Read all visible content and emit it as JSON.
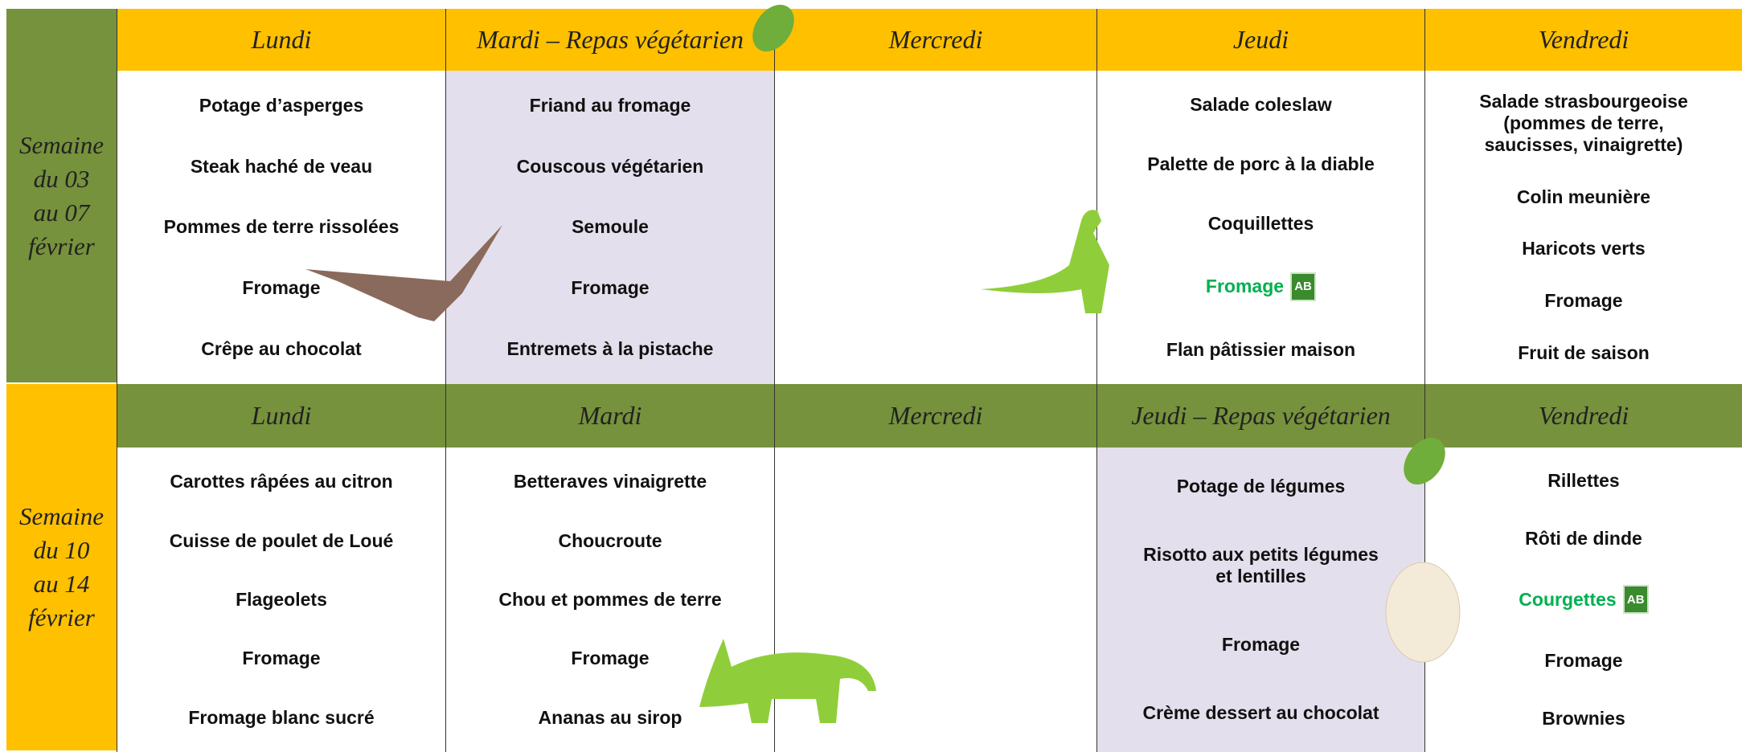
{
  "weeks": [
    {
      "label": "Semaine\ndu 03\nau 07\nfévrier",
      "days": [
        {
          "header": "Lundi",
          "items": [
            {
              "label": "Potage d’asperges"
            },
            {
              "label": "Steak haché de veau"
            },
            {
              "label": "Pommes de terre rissolées"
            },
            {
              "label": "Fromage"
            },
            {
              "label": "Crêpe au chocolat"
            }
          ]
        },
        {
          "header": "Mardi – Repas végétarien",
          "vegetarian": true,
          "items": [
            {
              "label": "Friand au fromage"
            },
            {
              "label": "Couscous végétarien"
            },
            {
              "label": "Semoule"
            },
            {
              "label": "Fromage"
            },
            {
              "label": "Entremets à la pistache"
            }
          ]
        },
        {
          "header": "Mercredi",
          "items": []
        },
        {
          "header": "Jeudi",
          "items": [
            {
              "label": "Salade coleslaw"
            },
            {
              "label": "Palette de porc à la diable"
            },
            {
              "label": "Coquillettes"
            },
            {
              "label": "Fromage",
              "organic": true
            },
            {
              "label": "Flan pâtissier maison"
            }
          ]
        },
        {
          "header": "Vendredi",
          "items": [
            {
              "label": "Salade strasbourgeoise\n(pommes de terre,\nsaucisses, vinaigrette)"
            },
            {
              "label": "Colin meunière"
            },
            {
              "label": "Haricots verts"
            },
            {
              "label": "Fromage"
            },
            {
              "label": "Fruit de saison"
            }
          ]
        }
      ]
    },
    {
      "label": "Semaine\ndu 10\nau 14\nfévrier",
      "days": [
        {
          "header": "Lundi",
          "items": [
            {
              "label": "Carottes râpées au citron"
            },
            {
              "label": "Cuisse de poulet de Loué"
            },
            {
              "label": "Flageolets"
            },
            {
              "label": "Fromage"
            },
            {
              "label": "Fromage blanc sucré"
            }
          ]
        },
        {
          "header": "Mardi",
          "items": [
            {
              "label": "Betteraves vinaigrette"
            },
            {
              "label": "Choucroute"
            },
            {
              "label": "Chou et pommes de terre"
            },
            {
              "label": "Fromage"
            },
            {
              "label": "Ananas au sirop"
            }
          ]
        },
        {
          "header": "Mercredi",
          "items": []
        },
        {
          "header": "Jeudi – Repas végétarien",
          "vegetarian": true,
          "items": [
            {
              "label": "Potage de légumes"
            },
            {
              "label": "Risotto aux petits légumes\net lentilles"
            },
            {
              "label": "Fromage"
            },
            {
              "label": "Crème dessert au chocolat"
            }
          ]
        },
        {
          "header": "Vendredi",
          "items": [
            {
              "label": "Rillettes"
            },
            {
              "label": "Rôti de dinde"
            },
            {
              "label": "Courgettes",
              "organic": true
            },
            {
              "label": "Fromage"
            },
            {
              "label": "Brownies"
            }
          ]
        }
      ]
    }
  ]
}
